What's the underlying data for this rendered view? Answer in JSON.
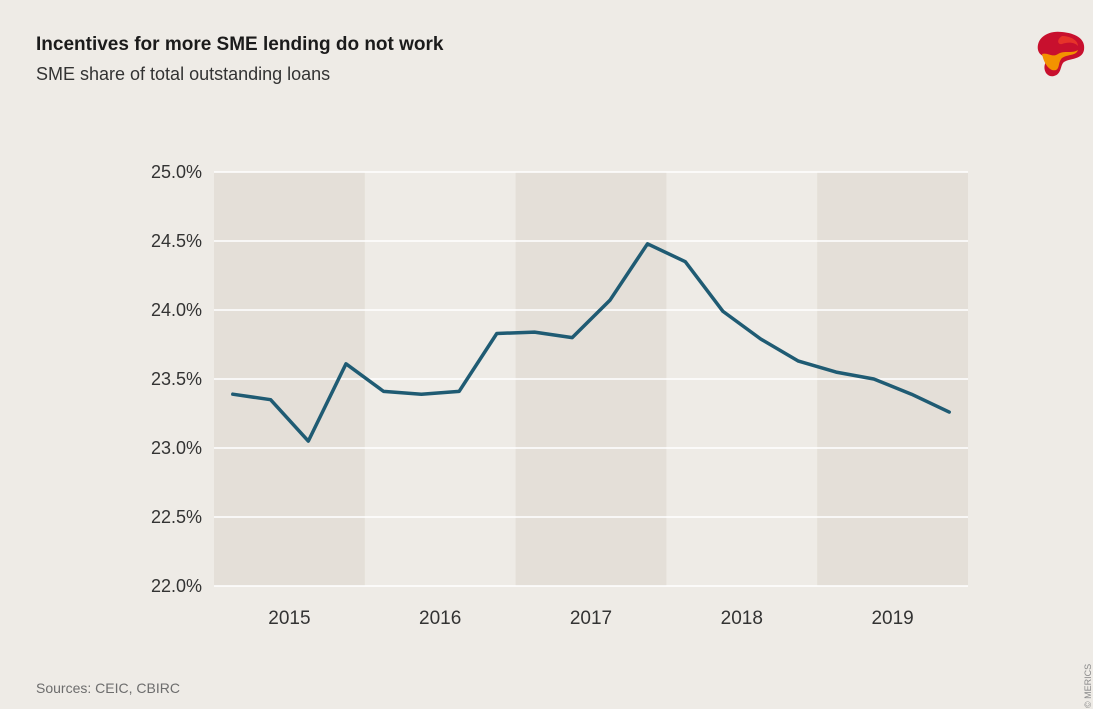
{
  "header": {
    "title": "Incentives for more SME lending do not work",
    "subtitle": "SME share of total outstanding loans"
  },
  "footer": {
    "source": "Sources: CEIC, CBIRC",
    "copyright": "© MERICS"
  },
  "logo": {
    "icon": "merics-logo-icon",
    "colors": [
      "#c8102e",
      "#f39200",
      "#e6332a"
    ]
  },
  "colors": {
    "background": "#eeebe6",
    "band": "#e4dfd8",
    "line": "#1f5b73",
    "grid": "#ffffff"
  },
  "chart_data": {
    "type": "line",
    "title": "Incentives for more SME lending do not work",
    "subtitle": "SME share of total outstanding loans",
    "xlabel": "",
    "ylabel": "",
    "categories": [
      "2015",
      "2016",
      "2017",
      "2018",
      "2019"
    ],
    "y_ticks": [
      "25.0%",
      "24.5%",
      "24.0%",
      "23.5%",
      "23.0%",
      "22.5%",
      "22.0%"
    ],
    "ylim": [
      22.0,
      25.0
    ],
    "grid": true,
    "shaded_years": [
      "2015",
      "2017",
      "2019"
    ],
    "x": [
      "2015-Q1",
      "2015-Q2",
      "2015-Q3",
      "2015-Q4",
      "2016-Q1",
      "2016-Q2",
      "2016-Q3",
      "2016-Q4",
      "2017-Q1",
      "2017-Q2",
      "2017-Q3",
      "2017-Q4",
      "2018-Q1",
      "2018-Q2",
      "2018-Q3",
      "2018-Q4",
      "2019-Q1",
      "2019-Q2",
      "2019-Q3",
      "2019-Q4"
    ],
    "series": [
      {
        "values": [
          23.39,
          23.35,
          23.05,
          23.61,
          23.41,
          23.39,
          23.41,
          23.83,
          23.84,
          23.8,
          24.07,
          24.48,
          24.35,
          23.99,
          23.79,
          23.63,
          23.55,
          23.5,
          23.39,
          23.26
        ]
      }
    ]
  }
}
